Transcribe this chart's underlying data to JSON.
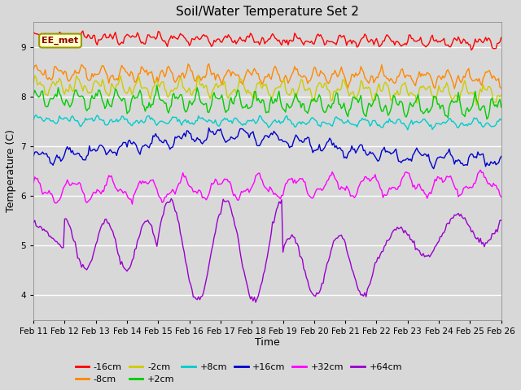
{
  "title": "Soil/Water Temperature Set 2",
  "xlabel": "Time",
  "ylabel": "Temperature (C)",
  "ylim": [
    3.5,
    9.5
  ],
  "xlim": [
    0,
    360
  ],
  "n_points": 361,
  "x_tick_labels": [
    "Feb 11",
    "Feb 12",
    "Feb 13",
    "Feb 14",
    "Feb 15",
    "Feb 16",
    "Feb 17",
    "Feb 18",
    "Feb 19",
    "Feb 20",
    "Feb 21",
    "Feb 22",
    "Feb 23",
    "Feb 24",
    "Feb 25",
    "Feb 26"
  ],
  "x_tick_positions": [
    0,
    24,
    48,
    72,
    96,
    120,
    144,
    168,
    192,
    216,
    240,
    264,
    288,
    312,
    336,
    360
  ],
  "annotation_text": "EE_met",
  "background_color": "#d8d8d8",
  "series": [
    {
      "label": "-16cm",
      "color": "#ff0000"
    },
    {
      "label": "-8cm",
      "color": "#ff8800"
    },
    {
      "label": "-2cm",
      "color": "#cccc00"
    },
    {
      "label": "+2cm",
      "color": "#00cc00"
    },
    {
      "label": "+8cm",
      "color": "#00cccc"
    },
    {
      "label": "+16cm",
      "color": "#0000cc"
    },
    {
      "label": "+32cm",
      "color": "#ff00ff"
    },
    {
      "label": "+64cm",
      "color": "#9900cc"
    }
  ]
}
